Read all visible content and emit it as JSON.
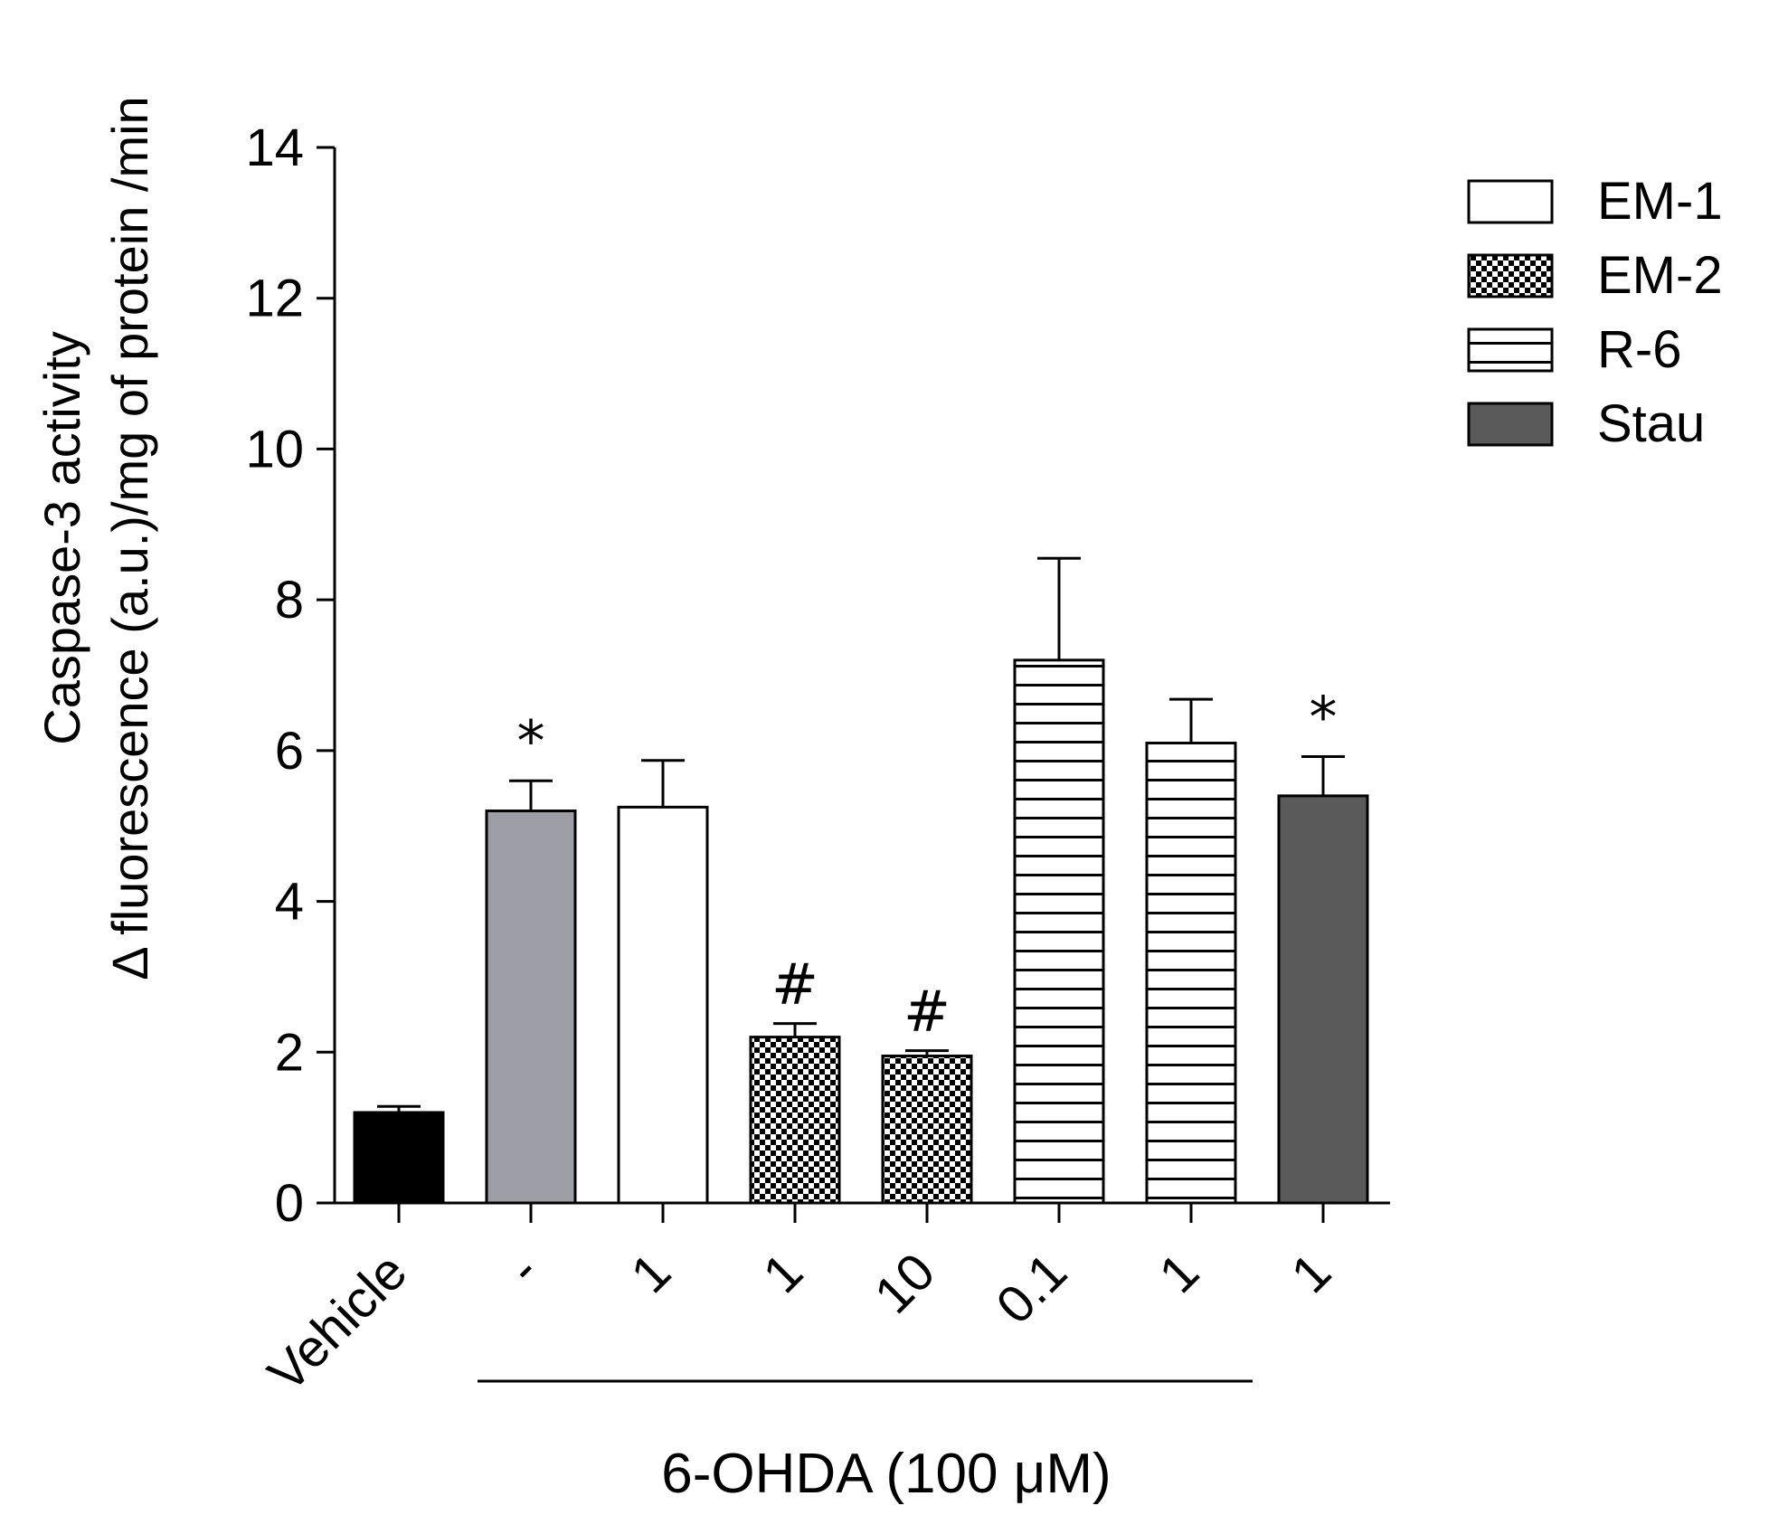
{
  "chart_data": {
    "type": "bar",
    "ylabel_line1": "Caspase-3 activity",
    "ylabel_line2": "Δ fluorescence (a.u.)/mg of protein /min",
    "ylim": [
      0,
      14
    ],
    "yticks": [
      "0",
      "2",
      "4",
      "6",
      "8",
      "10",
      "12",
      "14"
    ],
    "group_label": "6-OHDA (100 μM)",
    "colors": {
      "vehicle": "#000000",
      "ohda": "#9e9ea6",
      "em1": "#ffffff",
      "stau": "#5a5a5a"
    },
    "bars": [
      {
        "category": "Vehicle",
        "value": 1.2,
        "error": 0.08,
        "marker": "",
        "series": "Vehicle",
        "fill": "vehicle"
      },
      {
        "category": "-",
        "value": 5.2,
        "error": 0.4,
        "marker": "*",
        "series": "6-OHDA",
        "fill": "ohda"
      },
      {
        "category": "1",
        "value": 5.25,
        "error": 0.62,
        "marker": "",
        "series": "EM-1",
        "fill": "em1"
      },
      {
        "category": "1",
        "value": 2.2,
        "error": 0.18,
        "marker": "#",
        "series": "EM-2",
        "fill": "pattern-check"
      },
      {
        "category": "10",
        "value": 1.95,
        "error": 0.07,
        "marker": "#",
        "series": "EM-2",
        "fill": "pattern-check"
      },
      {
        "category": "0.1",
        "value": 7.2,
        "error": 1.35,
        "marker": "",
        "series": "R-6",
        "fill": "pattern-hlines"
      },
      {
        "category": "1",
        "value": 6.1,
        "error": 0.58,
        "marker": "",
        "series": "R-6",
        "fill": "pattern-hlines"
      },
      {
        "category": "1",
        "value": 5.4,
        "error": 0.52,
        "marker": "*",
        "series": "Stau",
        "fill": "stau"
      }
    ],
    "legend": [
      {
        "label": "EM-1",
        "fill": "em1"
      },
      {
        "label": "EM-2",
        "fill": "pattern-check"
      },
      {
        "label": "R-6",
        "fill": "pattern-hlines"
      },
      {
        "label": "Stau",
        "fill": "stau"
      }
    ]
  }
}
